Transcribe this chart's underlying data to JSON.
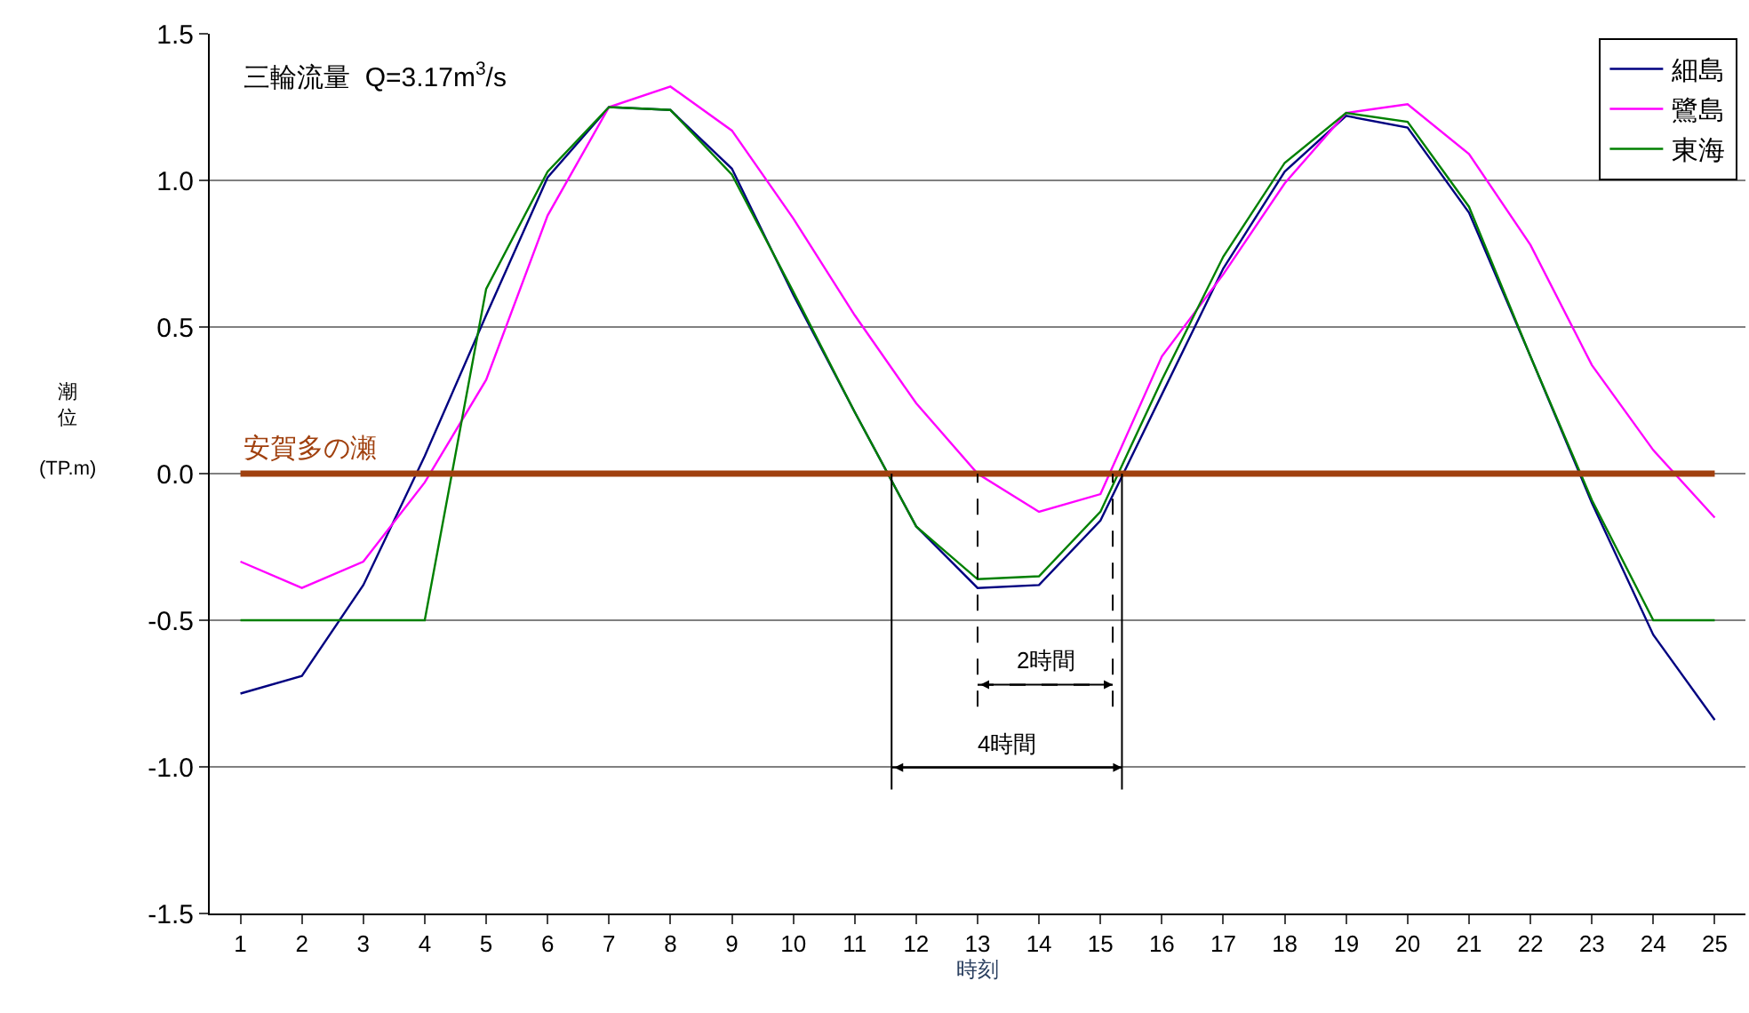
{
  "chart_data": {
    "type": "line",
    "title": "三輪流量  Q=3.17m$^{3}$/s",
    "xlabel": "時刻",
    "ylabel": "潮位(TP.m)",
    "x": [
      1,
      2,
      3,
      4,
      5,
      6,
      7,
      8,
      9,
      10,
      11,
      12,
      13,
      14,
      15,
      16,
      17,
      18,
      19,
      20,
      21,
      22,
      23,
      24,
      25
    ],
    "series": [
      {
        "name": "細島",
        "color": "#000080",
        "values": [
          -0.75,
          -0.69,
          -0.38,
          0.06,
          0.54,
          1.01,
          1.25,
          1.24,
          1.04,
          0.61,
          0.21,
          -0.18,
          -0.39,
          -0.38,
          -0.16,
          0.27,
          0.7,
          1.03,
          1.22,
          1.18,
          0.89,
          0.4,
          -0.1,
          -0.55,
          -0.84
        ]
      },
      {
        "name": "鷺島",
        "color": "#ff00ff",
        "values": [
          -0.3,
          -0.39,
          -0.3,
          -0.03,
          0.32,
          0.88,
          1.25,
          1.32,
          1.17,
          0.87,
          0.54,
          0.24,
          0.0,
          -0.13,
          -0.07,
          0.4,
          0.68,
          0.99,
          1.23,
          1.26,
          1.09,
          0.78,
          0.37,
          0.08,
          -0.15
        ]
      },
      {
        "name": "東海",
        "color": "#008000",
        "values": [
          -0.5,
          -0.5,
          -0.5,
          -0.5,
          0.63,
          1.03,
          1.25,
          1.24,
          1.02,
          0.62,
          0.21,
          -0.18,
          -0.36,
          -0.35,
          -0.13,
          0.32,
          0.74,
          1.06,
          1.23,
          1.2,
          0.91,
          0.4,
          -0.09,
          -0.5,
          -0.5
        ]
      }
    ],
    "xlim": [
      0.5,
      25.5
    ],
    "xticks": [
      1,
      2,
      3,
      4,
      5,
      6,
      7,
      8,
      9,
      10,
      11,
      12,
      13,
      14,
      15,
      16,
      17,
      18,
      19,
      20,
      21,
      22,
      23,
      24,
      25
    ],
    "ylim": [
      -1.5,
      1.5
    ],
    "yticks": [
      {
        "value": -1.5,
        "label": "-1.5"
      },
      {
        "value": -1.0,
        "label": "-1.0"
      },
      {
        "value": -0.5,
        "label": "-0.5"
      },
      {
        "value": 0,
        "label": "0.0"
      },
      {
        "value": 0.5,
        "label": "0.5"
      },
      {
        "value": 1.0,
        "label": "1.0"
      },
      {
        "value": 1.5,
        "label": "1.5"
      }
    ],
    "ref_lines": [
      {
        "axis": "y",
        "value": 0,
        "label": "安賀多の瀬",
        "color": "#a0400e"
      },
      {
        "axis": "x",
        "value": 13.0,
        "color": "#000000",
        "line_style": "dashed"
      },
      {
        "axis": "x",
        "value": 15.2,
        "color": "#000000",
        "line_style": "dashed"
      },
      {
        "axis": "x",
        "value": 11.6,
        "color": "#000000",
        "line_style": "solid"
      },
      {
        "axis": "x",
        "value": 15.35,
        "color": "#000000",
        "line_style": "solid"
      }
    ],
    "annotations": [
      "2時間",
      "4時間"
    ],
    "grid": "y",
    "legend": "top right",
    "marker": "none",
    "line_style": "solid"
  }
}
